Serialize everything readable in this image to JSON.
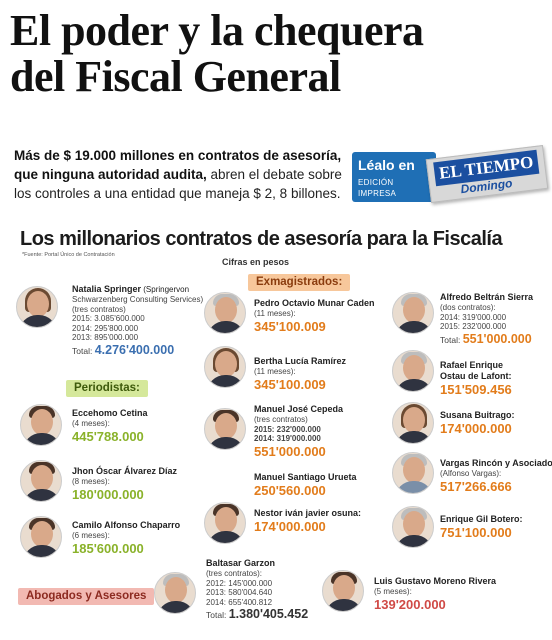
{
  "headline": {
    "line1": "El poder y la chequera",
    "line2": "del Fiscal General"
  },
  "subheadline": {
    "bold": "Más de $ 19.000 millones en contratos de asesoría, que ninguna autoridad audita,",
    "rest": " abren el debate sobre los controles a una entidad que maneja $ 2, 8 billones."
  },
  "promo": {
    "lealo": "Léalo en",
    "edicion": "EDICIÓN IMPRESA",
    "paper": "EL TIEMPO",
    "day": "Domingo"
  },
  "box": {
    "title": "Los millonarios contratos de asesoría para la Fiscalía",
    "fuente": "*Fuente: Portal Único de Contratación",
    "cifras": "Cifras en pesos"
  },
  "sections": {
    "exmagistrados": "Exmagistrados:",
    "periodistas": "Periodistas:",
    "abogados": "Abogados y Asesores"
  },
  "people": {
    "springer": {
      "name": "Natalia Springer",
      "firm": " (Springervon",
      "firm2": "Schwarzenberg Consulting Services)",
      "detail": "(tres contratos)",
      "c1": "2015: 3.085'600.000",
      "c2": "2014: 295'800.000",
      "c3": "2013: 895'000.000",
      "total_label": "Total:",
      "total": "4.276'400.000"
    },
    "munar": {
      "name": "Pedro Octavio Munar Caden",
      "detail": "(11 meses):",
      "amount": "345'100.009"
    },
    "ramirez": {
      "name": "Bertha Lucía Ramírez",
      "detail": "(11 meses):",
      "amount": "345'100.009"
    },
    "cepeda": {
      "name": "Manuel José Cepeda",
      "detail": "(tres contratos)",
      "c1": "2015: 232'000.000",
      "c2": "2014: 319'000.000",
      "amount": "551'000.000"
    },
    "urueta": {
      "name": "Manuel Santiago Urueta",
      "amount": "250'560.000"
    },
    "osuna": {
      "name": "Nestor iván javier osuna:",
      "amount": "174'000.000"
    },
    "beltran": {
      "name": "Alfredo Beltrán Sierra",
      "detail": "(dos contratos):",
      "c1": "2014: 319'000.000",
      "c2": "2015: 232'000.000",
      "total_label": "Total:",
      "total": "551'000.000"
    },
    "ostau": {
      "name": "Rafael Enrique",
      "name2": "Ostau de Lafont:",
      "amount": "151'509.456"
    },
    "buitrago": {
      "name": "Susana Buitrago:",
      "amount": "174'000.000"
    },
    "vargas": {
      "name": "Vargas Rincón y Asociados",
      "detail": "(Alfonso Vargas):",
      "amount": "517'266.666"
    },
    "gil": {
      "name": "Enrique Gil Botero:",
      "amount": "751'100.000"
    },
    "cetina": {
      "name": "Eccehomo Cetina",
      "detail": "(4 meses):",
      "amount": "445'788.000"
    },
    "alvarez": {
      "name": "Jhon Óscar Álvarez Díaz",
      "detail": "(8 meses):",
      "amount": "180'000.000"
    },
    "chaparro": {
      "name": "Camilo Alfonso Chaparro",
      "detail": "(6 meses):",
      "amount": "185'600.000"
    },
    "garzon": {
      "name": "Baltasar Garzon",
      "detail": "(tres contratos):",
      "c1": "2012: 145'000.000",
      "c2": "2013: 580'004.640",
      "c3": "2014: 655'400.812",
      "total_label": "Total:",
      "total": "1.380'405.452"
    },
    "moreno": {
      "name": "Luis Gustavo Moreno Rivera",
      "detail": "(5 meses):",
      "amount": "139'200.000"
    }
  }
}
